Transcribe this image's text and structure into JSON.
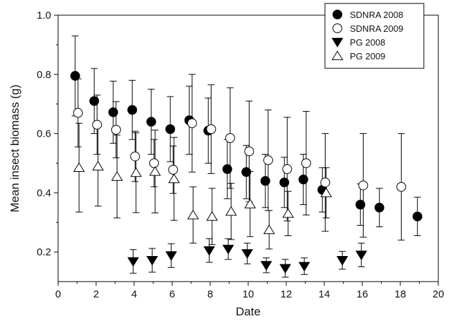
{
  "chart_data": {
    "type": "scatter",
    "xlabel": "Date",
    "ylabel": "Mean insect biomass (g)",
    "xlim": [
      0,
      20
    ],
    "ylim": [
      0.1,
      1.0
    ],
    "xticks": [
      "0",
      "2",
      "4",
      "6",
      "8",
      "10",
      "12",
      "14",
      "16",
      "18",
      "20"
    ],
    "yticks": [
      "0.2",
      "0.4",
      "0.6",
      "0.8",
      "1.0"
    ],
    "legend_position": "top-right",
    "series": [
      {
        "name": "SDNRA 2008",
        "marker": "circle-filled",
        "points": [
          {
            "x": 0.9,
            "y": 0.795,
            "err": 0.135
          },
          {
            "x": 1.9,
            "y": 0.71,
            "err": 0.11
          },
          {
            "x": 2.9,
            "y": 0.672,
            "err": 0.105
          },
          {
            "x": 3.9,
            "y": 0.68,
            "err": 0.1
          },
          {
            "x": 4.9,
            "y": 0.64,
            "err": 0.11
          },
          {
            "x": 5.9,
            "y": 0.615,
            "err": 0.11
          },
          {
            "x": 6.9,
            "y": 0.645,
            "err": 0.115
          },
          {
            "x": 7.9,
            "y": 0.61,
            "err": 0.11
          },
          {
            "x": 8.9,
            "y": 0.48,
            "err": 0.1
          },
          {
            "x": 9.9,
            "y": 0.47,
            "err": 0.09
          },
          {
            "x": 10.9,
            "y": 0.44,
            "err": 0.09
          },
          {
            "x": 11.9,
            "y": 0.435,
            "err": 0.085
          },
          {
            "x": 12.9,
            "y": 0.445,
            "err": 0.085
          },
          {
            "x": 13.9,
            "y": 0.41,
            "err": 0.075
          },
          {
            "x": 15.9,
            "y": 0.36,
            "err": 0.07
          },
          {
            "x": 16.9,
            "y": 0.35,
            "err": 0.065
          },
          {
            "x": 18.9,
            "y": 0.32,
            "err": 0.065
          }
        ]
      },
      {
        "name": "SDNRA 2009",
        "marker": "circle-open",
        "points": [
          {
            "x": 1.05,
            "y": 0.67,
            "err": 0.115
          },
          {
            "x": 2.05,
            "y": 0.63,
            "err": 0.1
          },
          {
            "x": 3.05,
            "y": 0.613,
            "err": 0.095
          },
          {
            "x": 4.05,
            "y": 0.523,
            "err": 0.085
          },
          {
            "x": 5.05,
            "y": 0.5,
            "err": 0.08
          },
          {
            "x": 6.05,
            "y": 0.478,
            "err": 0.08
          },
          {
            "x": 7.05,
            "y": 0.635,
            "err": 0.165
          },
          {
            "x": 8.05,
            "y": 0.615,
            "err": 0.15
          },
          {
            "x": 9.05,
            "y": 0.585,
            "err": 0.17
          },
          {
            "x": 10.05,
            "y": 0.54,
            "err": 0.17
          },
          {
            "x": 11.05,
            "y": 0.51,
            "err": 0.17
          },
          {
            "x": 12.05,
            "y": 0.48,
            "err": 0.175
          },
          {
            "x": 13.05,
            "y": 0.5,
            "err": 0.175
          },
          {
            "x": 14.05,
            "y": 0.435,
            "err": 0.165
          },
          {
            "x": 16.05,
            "y": 0.425,
            "err": 0.175
          },
          {
            "x": 18.05,
            "y": 0.42,
            "err": 0.18
          }
        ]
      },
      {
        "name": "PG 2008",
        "marker": "triangle-down-filled",
        "points": [
          {
            "x": 3.95,
            "y": 0.168,
            "err": 0.04
          },
          {
            "x": 4.95,
            "y": 0.172,
            "err": 0.04
          },
          {
            "x": 5.95,
            "y": 0.188,
            "err": 0.04
          },
          {
            "x": 7.95,
            "y": 0.205,
            "err": 0.04
          },
          {
            "x": 8.95,
            "y": 0.21,
            "err": 0.035
          },
          {
            "x": 9.95,
            "y": 0.195,
            "err": 0.035
          },
          {
            "x": 10.95,
            "y": 0.155,
            "err": 0.025
          },
          {
            "x": 11.95,
            "y": 0.145,
            "err": 0.03
          },
          {
            "x": 12.95,
            "y": 0.152,
            "err": 0.028
          },
          {
            "x": 14.95,
            "y": 0.172,
            "err": 0.03
          },
          {
            "x": 15.95,
            "y": 0.19,
            "err": 0.04
          }
        ]
      },
      {
        "name": "PG 2009",
        "marker": "triangle-up-open",
        "points": [
          {
            "x": 1.1,
            "y": 0.485,
            "err": 0.15
          },
          {
            "x": 2.1,
            "y": 0.49,
            "err": 0.135
          },
          {
            "x": 3.1,
            "y": 0.455,
            "err": 0.14
          },
          {
            "x": 4.1,
            "y": 0.468,
            "err": 0.135
          },
          {
            "x": 5.1,
            "y": 0.472,
            "err": 0.14
          },
          {
            "x": 6.1,
            "y": 0.447,
            "err": 0.14
          },
          {
            "x": 7.1,
            "y": 0.325,
            "err": 0.095
          },
          {
            "x": 8.1,
            "y": 0.32,
            "err": 0.095
          },
          {
            "x": 9.1,
            "y": 0.337,
            "err": 0.095
          },
          {
            "x": 10.1,
            "y": 0.362,
            "err": 0.11
          },
          {
            "x": 11.1,
            "y": 0.275,
            "err": 0.065
          },
          {
            "x": 12.1,
            "y": 0.33,
            "err": 0.075
          },
          {
            "x": 14.1,
            "y": 0.4,
            "err": 0.085
          }
        ]
      }
    ]
  }
}
